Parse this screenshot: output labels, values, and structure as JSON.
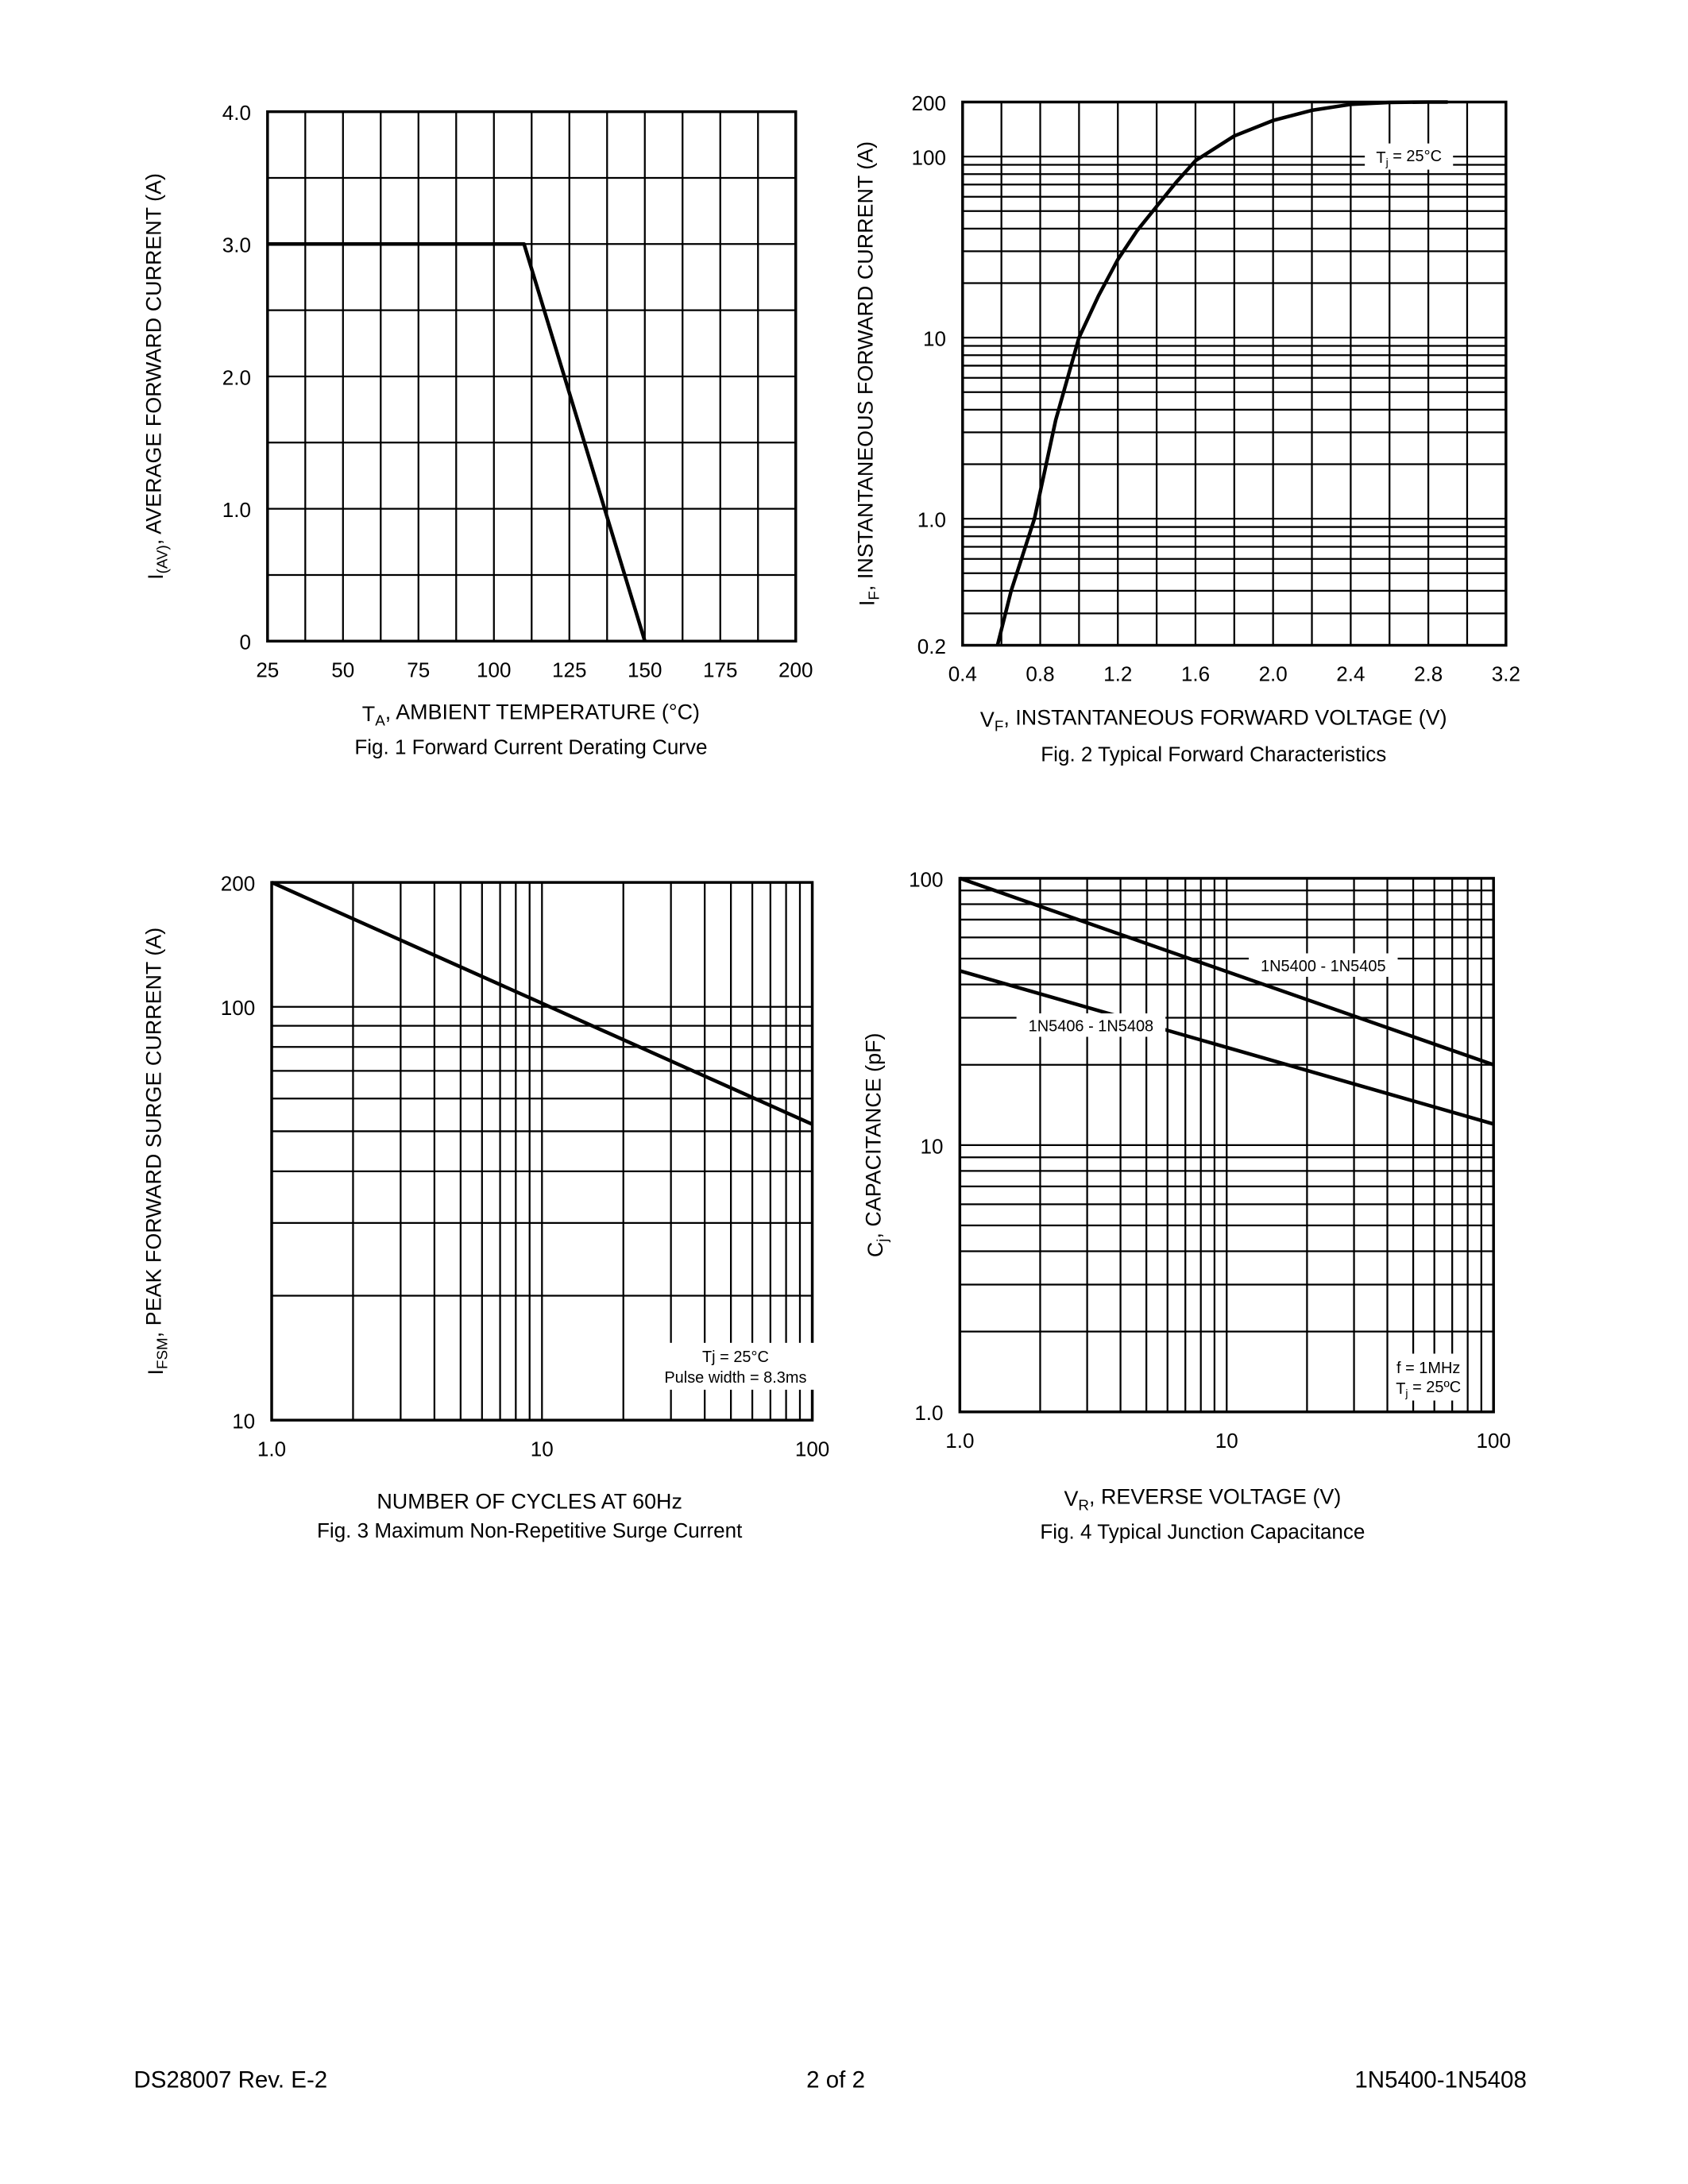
{
  "chart_data": [
    {
      "id": "fig1",
      "type": "line",
      "title": "Fig. 1  Forward Current Derating Curve",
      "xlabel": {
        "main": "T",
        "sub": "A",
        "rest": ", AMBIENT TEMPERATURE (°C)"
      },
      "ylabel": {
        "main": "I",
        "sub": "(AV)",
        "rest": ", AVERAGE FORWARD CURRENT (A)"
      },
      "xscale": "linear",
      "yscale": "linear",
      "xlim": [
        25,
        200
      ],
      "ylim": [
        0,
        4.0
      ],
      "xgrid_step": 12.5,
      "ygrid_step": 0.5,
      "grid": true,
      "xticks": [
        "25",
        "50",
        "75",
        "100",
        "125",
        "150",
        "175",
        "200"
      ],
      "xtick_values": [
        25,
        50,
        75,
        100,
        125,
        150,
        175,
        200
      ],
      "yticks": [
        "0",
        "1.0",
        "2.0",
        "3.0",
        "4.0"
      ],
      "ytick_values": [
        0,
        1,
        2,
        3,
        4
      ],
      "series": [
        {
          "x": [
            25,
            110,
            150
          ],
          "y": [
            3.0,
            3.0,
            0
          ]
        }
      ],
      "annotations": []
    },
    {
      "id": "fig2",
      "type": "line",
      "title": "Fig. 2  Typical Forward Characteristics",
      "xlabel": {
        "main": "V",
        "sub": "F",
        "rest": ", INSTANTANEOUS FORWARD VOLTAGE (V)"
      },
      "ylabel": {
        "main": "I",
        "sub": "F",
        "rest": ", INSTANTANEOUS FORWARD CURRENT (A)"
      },
      "xscale": "linear",
      "yscale": "log",
      "xlim": [
        0.4,
        3.2
      ],
      "ylim": [
        0.2,
        200
      ],
      "xgrid_step": 0.2,
      "grid": true,
      "xticks": [
        "0.4",
        "0.8",
        "1.2",
        "1.6",
        "2.0",
        "2.4",
        "2.8",
        "3.2"
      ],
      "xtick_values": [
        0.4,
        0.8,
        1.2,
        1.6,
        2.0,
        2.4,
        2.8,
        3.2
      ],
      "yticks": [
        "0.2",
        "1.0",
        "10",
        "100",
        "200"
      ],
      "ytick_values": [
        0.2,
        1,
        10,
        100,
        200
      ],
      "series": [
        {
          "x": [
            0.58,
            0.65,
            0.77,
            0.88,
            1.0,
            1.1,
            1.2,
            1.3,
            1.4,
            1.5,
            1.6,
            1.8,
            2.0,
            2.2,
            2.4,
            2.6,
            2.8,
            2.9
          ],
          "y": [
            0.2,
            0.4,
            1.0,
            3.5,
            10,
            17,
            27,
            39,
            53,
            72,
            95,
            130,
            158,
            180,
            194,
            199,
            200,
            200
          ]
        }
      ],
      "annotations": [
        {
          "lines": [
            {
              "main": "T",
              "sub": "j",
              "rest": " = 25°C"
            }
          ],
          "x": 2.7,
          "y": 100
        }
      ]
    },
    {
      "id": "fig3",
      "type": "line",
      "title": "Fig. 3  Maximum Non-Repetitive Surge Current",
      "xlabel": {
        "main": "NUMBER OF CYCLES AT 60Hz",
        "sub": "",
        "rest": ""
      },
      "ylabel": {
        "main": "I",
        "sub": "FSM",
        "rest": ", PEAK FORWARD SURGE CURRENT (A)"
      },
      "xscale": "log",
      "yscale": "log",
      "xlim": [
        1,
        100
      ],
      "ylim": [
        10,
        200
      ],
      "grid": true,
      "xticks": [
        "1.0",
        "10",
        "100"
      ],
      "xtick_values": [
        1,
        10,
        100
      ],
      "yticks": [
        "10",
        "100",
        "200"
      ],
      "ytick_values": [
        10,
        100,
        200
      ],
      "series": [
        {
          "x": [
            1,
            10,
            100
          ],
          "y": [
            200,
            102,
            52
          ]
        }
      ],
      "annotations": [
        {
          "lines": [
            {
              "main": "Tj = 25°C",
              "sub": "",
              "rest": ""
            },
            {
              "main": "Pulse width = 8.3ms",
              "sub": "",
              "rest": ""
            }
          ],
          "x": 52,
          "y": 13.5
        }
      ]
    },
    {
      "id": "fig4",
      "type": "line",
      "title": "Fig. 4  Typical Junction Capacitance",
      "xlabel": {
        "main": "V",
        "sub": "R",
        "rest": ", REVERSE VOLTAGE (V)"
      },
      "ylabel": {
        "main": "C",
        "sub": "j",
        "rest": ", CAPACITANCE (pF)"
      },
      "xscale": "log",
      "yscale": "log",
      "xlim": [
        1,
        100
      ],
      "ylim": [
        1,
        100
      ],
      "grid": true,
      "xticks": [
        "1.0",
        "10",
        "100"
      ],
      "xtick_values": [
        1,
        10,
        100
      ],
      "yticks": [
        "1.0",
        "10",
        "100"
      ],
      "ytick_values": [
        1,
        10,
        100
      ],
      "series": [
        {
          "name": "1N5400 - 1N5405",
          "x": [
            1,
            100
          ],
          "y": [
            100,
            20
          ]
        },
        {
          "name": "1N5406 - 1N5408",
          "x": [
            1,
            100
          ],
          "y": [
            45,
            12
          ]
        }
      ],
      "series_labels": [
        {
          "x": 23,
          "y": 47
        },
        {
          "x": 3.1,
          "y": 28
        }
      ],
      "annotations": [
        {
          "lines": [
            {
              "main": "f = 1MHz",
              "sub": "",
              "rest": ""
            },
            {
              "main": "T",
              "sub": "j",
              "rest": " = 25ºC"
            }
          ],
          "x": 57,
          "y": 1.35
        }
      ]
    }
  ],
  "footer": {
    "doc_number": "DS28007 Rev. E-2",
    "page": "2 of 2",
    "part_numbers": "1N5400-1N5408"
  }
}
